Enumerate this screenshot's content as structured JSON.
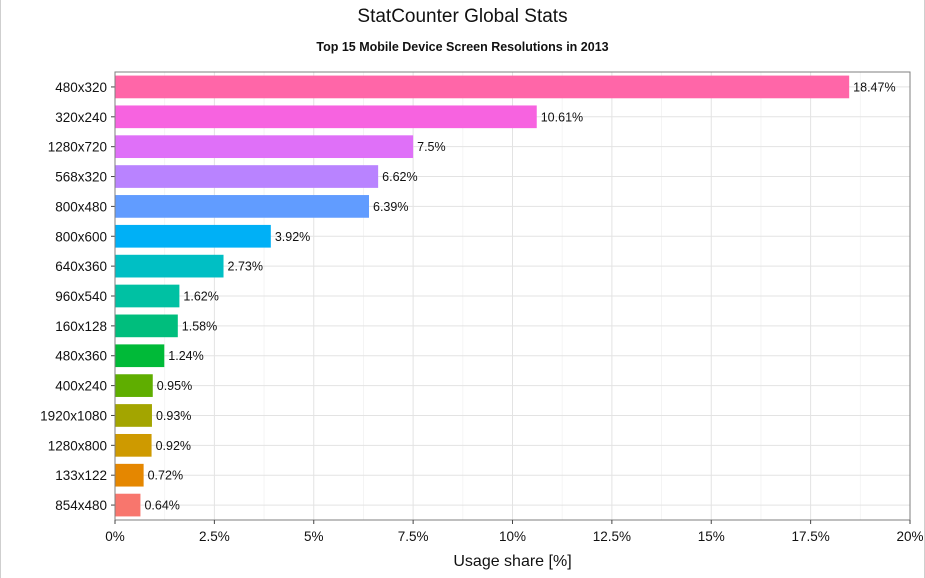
{
  "window": {
    "title": "StatCounter Global Stats",
    "subtitle": "Top 15 Mobile Device Screen Resolutions in 2013"
  },
  "chart_data": {
    "type": "bar",
    "orientation": "horizontal",
    "title": "StatCounter Global Stats",
    "subtitle": "Top 15 Mobile Device Screen Resolutions in 2013",
    "xlabel": "Usage share [%]",
    "ylabel": "",
    "xlim": [
      0,
      20
    ],
    "grid": true,
    "legend": "none",
    "categories": [
      "480x320",
      "320x240",
      "1280x720",
      "568x320",
      "800x480",
      "800x600",
      "640x360",
      "960x540",
      "160x128",
      "480x360",
      "400x240",
      "1920x1080",
      "1280x800",
      "133x122",
      "854x480"
    ],
    "values": [
      18.47,
      10.61,
      7.5,
      6.62,
      6.39,
      3.92,
      2.73,
      1.62,
      1.58,
      1.24,
      0.95,
      0.93,
      0.92,
      0.72,
      0.64
    ],
    "value_labels": [
      "18.47%",
      "10.61%",
      "7.5%",
      "6.62%",
      "6.39%",
      "3.92%",
      "2.73%",
      "1.62%",
      "1.58%",
      "1.24%",
      "0.95%",
      "0.93%",
      "0.92%",
      "0.72%",
      "0.64%"
    ],
    "colors": [
      "#ff66a8",
      "#f763e0",
      "#df70f8",
      "#b983ff",
      "#619cff",
      "#00b0f6",
      "#00bfc4",
      "#00c1a3",
      "#00be7d",
      "#00ba38",
      "#5fae00",
      "#a3a500",
      "#ce9a00",
      "#e58700",
      "#f8766d"
    ],
    "x_ticks": [
      0,
      2.5,
      5,
      7.5,
      10,
      12.5,
      15,
      17.5,
      20
    ],
    "x_tick_labels": [
      "0%",
      "2.5%",
      "5%",
      "7.5%",
      "10%",
      "12.5%",
      "15%",
      "17.5%",
      "20%"
    ]
  }
}
